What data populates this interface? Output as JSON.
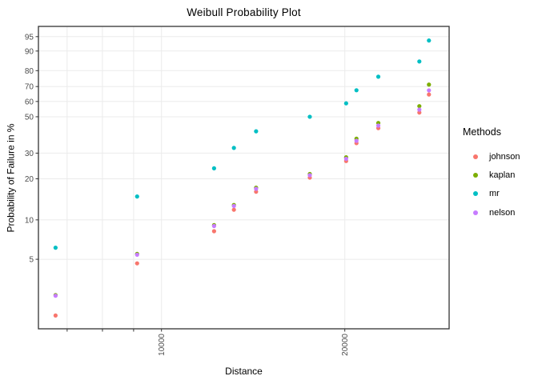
{
  "title": "Weibull Probability Plot",
  "axes": {
    "x": {
      "title": "Distance",
      "scale": "log10",
      "lim": [
        6280,
        29670
      ],
      "breaks": [
        7000,
        8000,
        9000,
        10000,
        20000
      ],
      "labels": [
        "",
        "",
        "",
        "10000",
        "20000"
      ]
    },
    "y": {
      "title": "Probability of Failure in %",
      "scale": "weibull",
      "lim": [
        1.43,
        97.3
      ],
      "breaks": [
        5,
        10,
        20,
        30,
        50,
        60,
        70,
        80,
        90,
        95
      ]
    }
  },
  "legend": {
    "title": "Methods",
    "items": [
      {
        "label": "johnson",
        "color": "#F8766D"
      },
      {
        "label": "kaplan",
        "color": "#7CAE00"
      },
      {
        "label": "mr",
        "color": "#00BFC4"
      },
      {
        "label": "nelson",
        "color": "#C77CFF"
      }
    ]
  },
  "chart_data": {
    "type": "scatter",
    "title": "Weibull Probability Plot",
    "xlabel": "Distance",
    "ylabel": "Probability of Failure in %",
    "x_scale": "log10",
    "y_scale": "weibull-probability",
    "x": [
      6700,
      9120,
      12200,
      13150,
      14300,
      17520,
      20100,
      20900,
      22700,
      26510,
      27490
    ],
    "series": [
      {
        "name": "johnson",
        "color": "#F8766D",
        "values": [
          1.82,
          4.65,
          8.21,
          11.91,
          16.15,
          20.38,
          26.56,
          34.81,
          43.06,
          52.68,
          64.7
        ]
      },
      {
        "name": "kaplan",
        "color": "#7CAE00",
        "values": [
          2.63,
          5.5,
          9.13,
          12.92,
          17.27,
          21.63,
          28.16,
          37.14,
          46.12,
          56.89,
          71.26
        ]
      },
      {
        "name": "mr",
        "color": "#00BFC4",
        "values": [
          6.14,
          14.91,
          23.68,
          32.46,
          41.23,
          50.0,
          58.77,
          67.54,
          76.32,
          85.09,
          93.86
        ]
      },
      {
        "name": "nelson",
        "color": "#C77CFF",
        "values": [
          2.6,
          5.42,
          8.99,
          12.7,
          16.96,
          21.2,
          27.5,
          36.03,
          44.55,
          54.6,
          67.47
        ]
      }
    ],
    "legend_position": "right",
    "grid": true
  },
  "style": {
    "grid_color": "#EBEBEB",
    "border_color": "#333333",
    "tick_color": "#333333",
    "tick_label_color": "#4D4D4D",
    "point_radius": 2.6
  }
}
